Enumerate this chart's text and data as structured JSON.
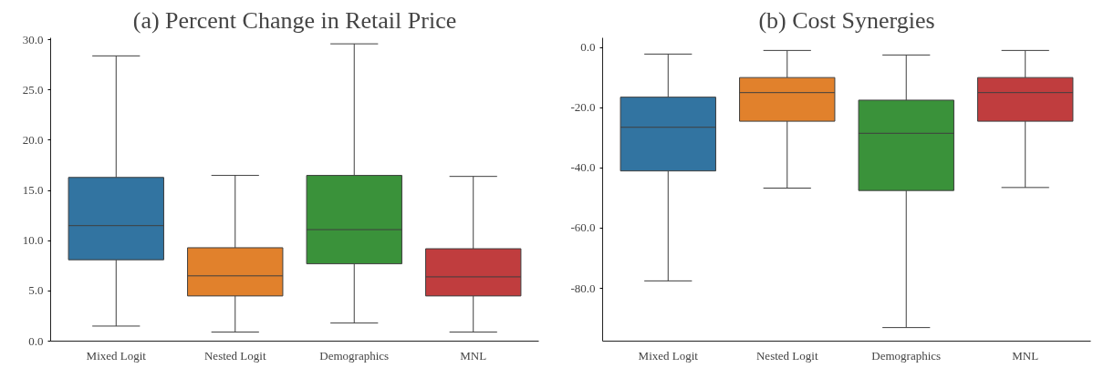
{
  "chart_data": [
    {
      "type": "box",
      "title": "(a) Percent Change in Retail Price",
      "categories": [
        "Mixed Logit",
        "Nested Logit",
        "Demographics",
        "MNL"
      ],
      "colors": [
        "#3274a1",
        "#e1812c",
        "#3a923a",
        "#c03d3e"
      ],
      "boxes": [
        {
          "low": 1.5,
          "q1": 8.1,
          "median": 11.5,
          "q3": 16.3,
          "high": 28.4
        },
        {
          "low": 0.9,
          "q1": 4.5,
          "median": 6.5,
          "q3": 9.3,
          "high": 16.5
        },
        {
          "low": 1.8,
          "q1": 7.7,
          "median": 11.1,
          "q3": 16.5,
          "high": 29.6
        },
        {
          "low": 0.9,
          "q1": 4.5,
          "median": 6.4,
          "q3": 9.2,
          "high": 16.4
        }
      ],
      "ylim": [
        0,
        30.2
      ],
      "yticks": [
        {
          "value": 0,
          "label": "0.0"
        },
        {
          "value": 5,
          "label": "5.0"
        },
        {
          "value": 10,
          "label": "10.0"
        },
        {
          "value": 15,
          "label": "15.0"
        },
        {
          "value": 20,
          "label": "20.0"
        },
        {
          "value": 25,
          "label": "25.0"
        },
        {
          "value": 30,
          "label": "30.0"
        }
      ]
    },
    {
      "type": "box",
      "title": "(b) Cost Synergies",
      "categories": [
        "Mixed Logit",
        "Nested Logit",
        "Demographics",
        "MNL"
      ],
      "colors": [
        "#3274a1",
        "#e1812c",
        "#3a923a",
        "#c03d3e"
      ],
      "boxes": [
        {
          "low": -77.5,
          "q1": -41,
          "median": -26.5,
          "q3": -16.5,
          "high": -2.2
        },
        {
          "low": -46.7,
          "q1": -24.5,
          "median": -15,
          "q3": -10,
          "high": -1
        },
        {
          "low": -93,
          "q1": -47.5,
          "median": -28.5,
          "q3": -17.5,
          "high": -2.5
        },
        {
          "low": -46.5,
          "q1": -24.5,
          "median": -15,
          "q3": -10,
          "high": -1
        }
      ],
      "ylim": [
        -97.5,
        3.2
      ],
      "yticks": [
        {
          "value": -80,
          "label": "-80.0"
        },
        {
          "value": -60,
          "label": "-60.0"
        },
        {
          "value": -40,
          "label": "-40.0"
        },
        {
          "value": -20,
          "label": "-20.0"
        },
        {
          "value": 0,
          "label": "0.0"
        }
      ]
    }
  ]
}
